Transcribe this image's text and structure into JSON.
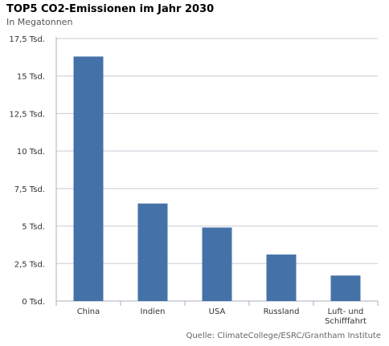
{
  "chart_data": {
    "type": "bar",
    "title": "TOP5 CO2-Emissionen im Jahr 2030",
    "subtitle": "In Megatonnen",
    "categories": [
      "China",
      "Indien",
      "USA",
      "Russland",
      "Luft- und Schifffahrt"
    ],
    "category_lines": [
      [
        "China"
      ],
      [
        "Indien"
      ],
      [
        "USA"
      ],
      [
        "Russland"
      ],
      [
        "Luft- und",
        "Schifffahrt"
      ]
    ],
    "values": [
      16300,
      6500,
      4900,
      3100,
      1700
    ],
    "ylim": [
      0,
      17500
    ],
    "yticks": [
      0,
      2500,
      5000,
      7500,
      10000,
      12500,
      15000,
      17500
    ],
    "ytick_labels": [
      "0 Tsd.",
      "2,5 Tsd.",
      "5 Tsd.",
      "7,5 Tsd.",
      "10 Tsd.",
      "12,5 Tsd.",
      "15 Tsd.",
      "17,5 Tsd."
    ],
    "grid": true,
    "bar_color": "#4472a8",
    "grid_color": "#c8cdd6",
    "source": "Quelle: ClimateCollege/ESRC/Grantham Institute"
  }
}
